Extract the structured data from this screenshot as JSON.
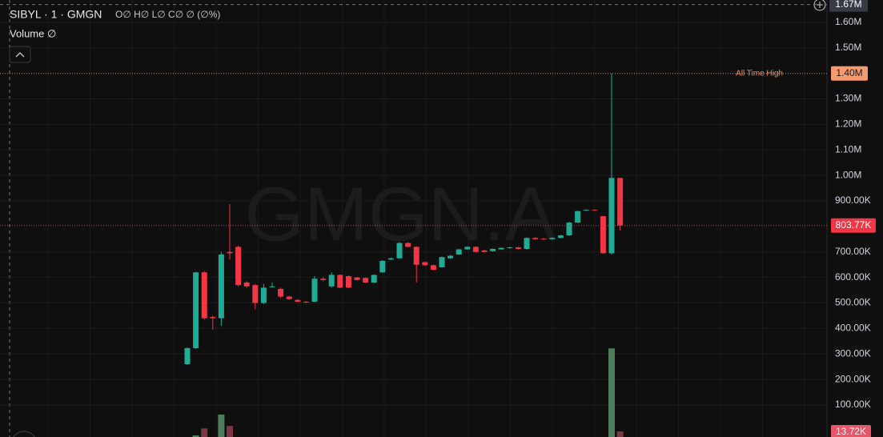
{
  "chart_data": {
    "type": "candlestick",
    "symbol": "SIBYL · 1 · GMGN",
    "ohlc_legend": "O∅ H∅ L∅ C∅ ∅ (∅%)",
    "volume_legend": "Volume ∅",
    "watermark": "GMGN.A",
    "up_color": "#22ab94",
    "down_color": "#f23645",
    "open": [
      260000,
      323000,
      620000,
      445000,
      440000,
      700000,
      720000,
      580000,
      570000,
      500000,
      562000,
      555000,
      525000,
      512000,
      505000,
      505000,
      595000,
      565000,
      610000,
      605000,
      600000,
      598000,
      580000,
      620000,
      670000,
      675000,
      735000,
      720000,
      660000,
      648000,
      640000,
      675000,
      690000,
      710000,
      720000,
      706000,
      703000,
      710000,
      715000,
      718000,
      712000,
      755000,
      752000,
      750000,
      755000,
      765000,
      815000,
      862000,
      865000,
      840000,
      695000,
      990000
    ],
    "high": [
      325000,
      622000,
      625000,
      450000,
      700000,
      888000,
      725000,
      585000,
      575000,
      575000,
      580000,
      560000,
      528000,
      515000,
      507000,
      605000,
      600000,
      620000,
      612000,
      608000,
      602000,
      600000,
      612000,
      668000,
      678000,
      738000,
      738000,
      722000,
      662000,
      650000,
      682000,
      688000,
      712000,
      722000,
      722000,
      708000,
      714000,
      718000,
      720000,
      720000,
      757000,
      757000,
      754000,
      757000,
      767000,
      818000,
      862000,
      867000,
      867000,
      842000,
      1400000,
      990000
    ],
    "low": [
      258000,
      320000,
      435000,
      395000,
      410000,
      670000,
      565000,
      560000,
      475000,
      495000,
      560000,
      520000,
      512000,
      503000,
      500000,
      503000,
      585000,
      560000,
      558000,
      558000,
      588000,
      578000,
      578000,
      618000,
      668000,
      673000,
      718000,
      580000,
      645000,
      628000,
      638000,
      673000,
      688000,
      708000,
      698000,
      698000,
      701000,
      708000,
      713000,
      710000,
      710000,
      748000,
      748000,
      748000,
      753000,
      763000,
      813000,
      860000,
      861000,
      693000,
      690000,
      785000
    ],
    "close": [
      323000,
      620000,
      440000,
      440000,
      690000,
      695000,
      570000,
      565000,
      500000,
      560000,
      565000,
      525000,
      515000,
      505000,
      502000,
      595000,
      590000,
      610000,
      560000,
      560000,
      590000,
      580000,
      610000,
      665000,
      675000,
      735000,
      720000,
      650000,
      648000,
      630000,
      680000,
      685000,
      710000,
      720000,
      700000,
      700000,
      712000,
      716000,
      718000,
      712000,
      755000,
      750000,
      750000,
      755000,
      765000,
      815000,
      860000,
      865000,
      863000,
      695000,
      990000,
      803770
    ],
    "volume": [
      null,
      4000,
      21000,
      null,
      55000,
      27000,
      null,
      null,
      null,
      null,
      null,
      null,
      null,
      null,
      null,
      null,
      null,
      null,
      null,
      null,
      null,
      null,
      null,
      null,
      null,
      null,
      null,
      null,
      null,
      null,
      null,
      null,
      null,
      null,
      null,
      null,
      null,
      null,
      null,
      null,
      null,
      null,
      null,
      null,
      null,
      null,
      null,
      null,
      null,
      null,
      217000,
      13720
    ],
    "volume_lim": [
      0,
      1070000
    ],
    "volume_last_label": "13.72K",
    "ylim": [
      -25500,
      1687700
    ],
    "yticks": [
      {
        "value": 100000,
        "label": "100.00K"
      },
      {
        "value": 200000,
        "label": "200.00K"
      },
      {
        "value": 300000,
        "label": "300.00K"
      },
      {
        "value": 400000,
        "label": "400.00K"
      },
      {
        "value": 500000,
        "label": "500.00K"
      },
      {
        "value": 600000,
        "label": "600.00K"
      },
      {
        "value": 700000,
        "label": "700.00K"
      },
      {
        "value": 900000,
        "label": "900.00K"
      },
      {
        "value": 1000000,
        "label": "1.00M"
      },
      {
        "value": 1100000,
        "label": "1.10M"
      },
      {
        "value": 1200000,
        "label": "1.20M"
      },
      {
        "value": 1300000,
        "label": "1.30M"
      },
      {
        "value": 1500000,
        "label": "1.50M"
      },
      {
        "value": 1600000,
        "label": "1.60M"
      }
    ],
    "grid": true,
    "ath": {
      "label": "All Time High",
      "value": 1400000,
      "value_label": "1.40M"
    },
    "last_price": {
      "value": 803770,
      "label": "803.77K"
    },
    "crosshair": {
      "value": 1670000,
      "label": "1.67M"
    }
  }
}
